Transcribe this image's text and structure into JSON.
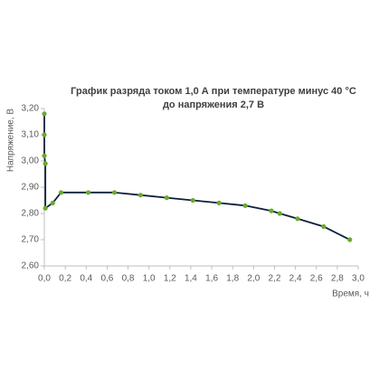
{
  "chart_data": {
    "type": "line",
    "title": [
      "График разряда током 1,0 А при температуре минус 40 °С",
      "до напряжения 2,7 В"
    ],
    "y_label": "Напряжение, В",
    "x_label": "Время, ч",
    "x": [
      0.0,
      0.0,
      0.0,
      0.01,
      0.01,
      0.08,
      0.16,
      0.42,
      0.67,
      0.92,
      1.17,
      1.42,
      1.67,
      1.92,
      2.17,
      2.25,
      2.42,
      2.67,
      2.92
    ],
    "series": [
      {
        "line_color": "#0d1f3c",
        "marker_color": "#6aaa2e",
        "values": [
          3.18,
          3.1,
          3.02,
          2.99,
          2.82,
          2.84,
          2.88,
          2.88,
          2.88,
          2.87,
          2.86,
          2.85,
          2.84,
          2.83,
          2.81,
          2.8,
          2.78,
          2.75,
          2.7
        ]
      }
    ],
    "xlim": [
      0,
      3.0
    ],
    "ylim": [
      2.6,
      3.2
    ],
    "xticks": [
      {
        "value": 0,
        "label": "0,0"
      },
      {
        "value": 0.2,
        "label": "0,2"
      },
      {
        "value": 0.4,
        "label": "0,4"
      },
      {
        "value": 0.6,
        "label": "0,6"
      },
      {
        "value": 0.8,
        "label": "0,8"
      },
      {
        "value": 1.0,
        "label": "1,0"
      },
      {
        "value": 1.2,
        "label": "1,2"
      },
      {
        "value": 1.4,
        "label": "1,4"
      },
      {
        "value": 1.6,
        "label": "1,6"
      },
      {
        "value": 1.8,
        "label": "1,8"
      },
      {
        "value": 2.0,
        "label": "2,0"
      },
      {
        "value": 2.2,
        "label": "2,2"
      },
      {
        "value": 2.4,
        "label": "2,4"
      },
      {
        "value": 2.6,
        "label": "2,6"
      },
      {
        "value": 2.8,
        "label": "2,8"
      },
      {
        "value": 3.0,
        "label": "3,0"
      }
    ],
    "yticks": [
      {
        "value": 2.6,
        "label": "2,60"
      },
      {
        "value": 2.7,
        "label": "2,70"
      },
      {
        "value": 2.8,
        "label": "2,80"
      },
      {
        "value": 2.9,
        "label": "2,90"
      },
      {
        "value": 3.0,
        "label": "3,00"
      },
      {
        "value": 3.1,
        "label": "3,10"
      },
      {
        "value": 3.2,
        "label": "3,20"
      }
    ]
  }
}
